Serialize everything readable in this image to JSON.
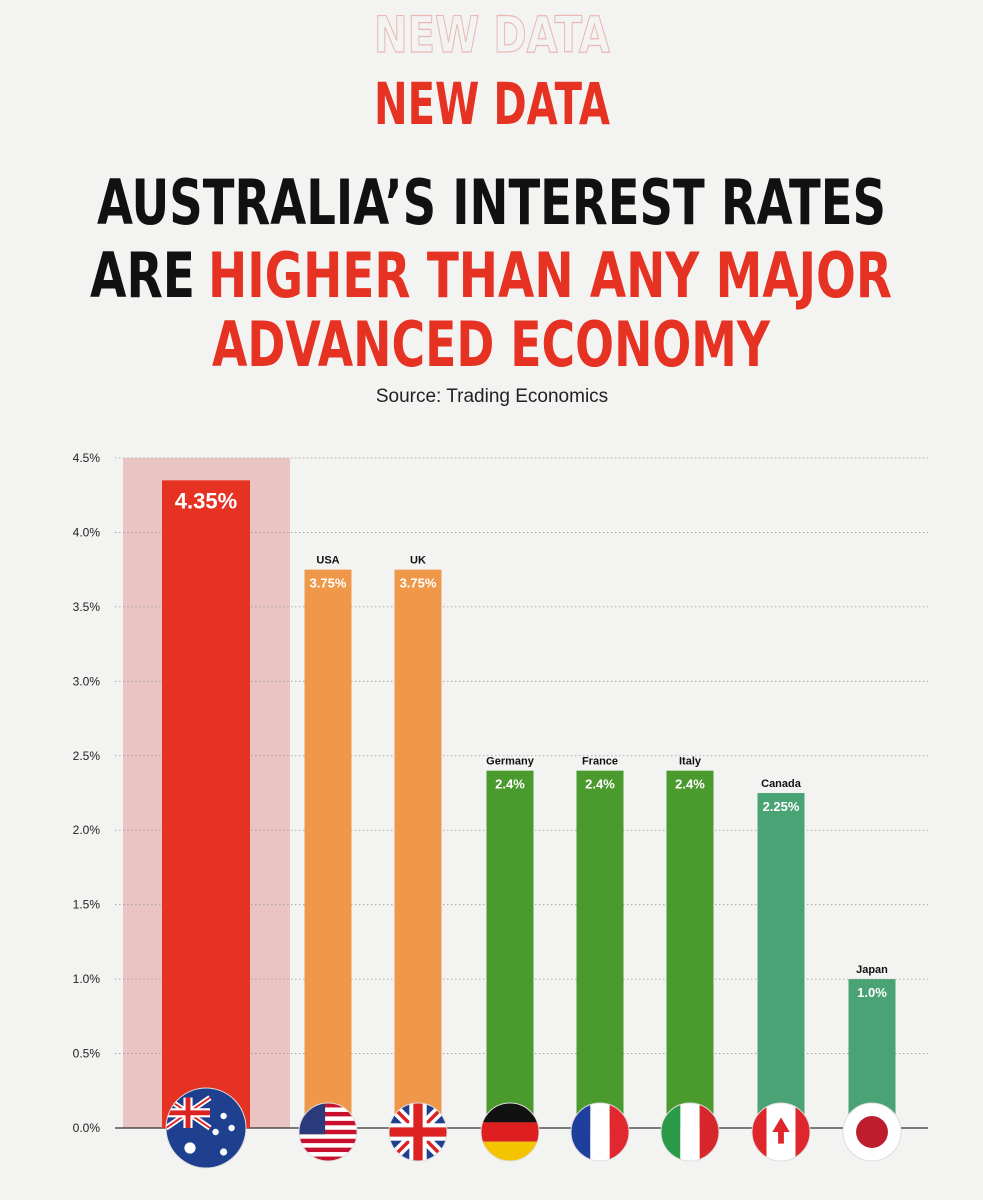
{
  "chart_data": {
    "type": "bar",
    "kicker": "NEW DATA",
    "title": [
      "AUSTRALIA’S INTEREST RATES",
      "ARE",
      "HIGHER THAN ANY MAJOR",
      "ADVANCED ECONOMY"
    ],
    "source": "Source: Trading Economics",
    "categories": [
      null,
      "USA",
      "UK",
      "Germany",
      "France",
      "Italy",
      "Canada",
      "Japan"
    ],
    "values": [
      4.35,
      3.75,
      3.75,
      2.4,
      2.4,
      2.4,
      2.25,
      1.0
    ],
    "value_labels": [
      "4.35%",
      "3.75%",
      "3.75%",
      "2.4%",
      "2.4%",
      "2.4%",
      "2.25%",
      "1.0%"
    ],
    "colors": [
      "#e63222",
      "#f0984a",
      "#f0984a",
      "#4a9a2e",
      "#4a9a2e",
      "#4a9a2e",
      "#4aa375",
      "#4aa375"
    ],
    "ylim": [
      0,
      4.5
    ],
    "yticks": [
      {
        "value": 0,
        "label": "0.0%"
      },
      {
        "value": 0.5,
        "label": "0.5%"
      },
      {
        "value": 1,
        "label": "1.0%"
      },
      {
        "value": 1.5,
        "label": "1.5%"
      },
      {
        "value": 2,
        "label": "2.0%"
      },
      {
        "value": 2.5,
        "label": "2.5%"
      },
      {
        "value": 3,
        "label": "3.0%"
      },
      {
        "value": 3.5,
        "label": "3.5%"
      },
      {
        "value": 4,
        "label": "4.0%"
      },
      {
        "value": 4.5,
        "label": "4.5%"
      }
    ],
    "grid": true
  }
}
